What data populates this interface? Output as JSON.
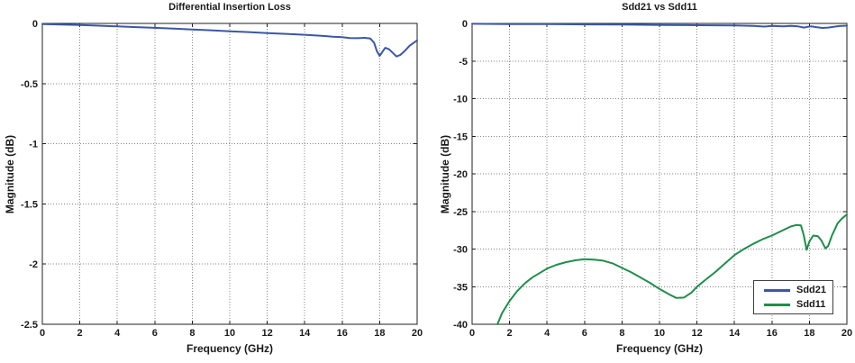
{
  "figure": {
    "background": "#ffffff",
    "axis_color": "#1f1f1f",
    "grid_color": "#858585",
    "text_color": "#1a1a1a",
    "line_blue": "#3a57a8",
    "line_green": "#1e8e4a"
  },
  "chart_data": [
    {
      "type": "line",
      "title": "Differential Insertion Loss",
      "xlabel": "Frequency (GHz)",
      "ylabel": "Magnitude (dB)",
      "xlim": [
        0,
        20
      ],
      "ylim": [
        -2.5,
        0
      ],
      "xticks": [
        0,
        2,
        4,
        6,
        8,
        10,
        12,
        14,
        16,
        18,
        20
      ],
      "yticks": [
        0,
        -0.5,
        -1,
        -1.5,
        -2,
        -2.5
      ],
      "grid": true,
      "legend": null,
      "series": [
        {
          "name": "Sdd21",
          "color": "#3a57a8",
          "x": [
            0,
            1,
            2,
            3,
            4,
            5,
            6,
            7,
            8,
            9,
            10,
            11,
            12,
            13,
            14,
            15,
            15.5,
            16,
            16.4,
            16.8,
            17.2,
            17.5,
            17.7,
            17.85,
            18.0,
            18.15,
            18.3,
            18.5,
            18.7,
            18.9,
            19.1,
            19.3,
            19.6,
            20
          ],
          "y": [
            -0.005,
            -0.009,
            -0.013,
            -0.019,
            -0.025,
            -0.031,
            -0.037,
            -0.043,
            -0.05,
            -0.057,
            -0.065,
            -0.072,
            -0.08,
            -0.087,
            -0.094,
            -0.104,
            -0.11,
            -0.114,
            -0.121,
            -0.123,
            -0.12,
            -0.125,
            -0.16,
            -0.23,
            -0.27,
            -0.235,
            -0.203,
            -0.215,
            -0.245,
            -0.275,
            -0.262,
            -0.235,
            -0.185,
            -0.141
          ]
        }
      ]
    },
    {
      "type": "line",
      "title": "Sdd21 vs Sdd11",
      "xlabel": "Frequency (GHz)",
      "ylabel": "Magnitude (dB)",
      "xlim": [
        0,
        20
      ],
      "ylim": [
        -40,
        0
      ],
      "xticks": [
        0,
        2,
        4,
        6,
        8,
        10,
        12,
        14,
        16,
        18,
        20
      ],
      "yticks": [
        0,
        -5,
        -10,
        -15,
        -20,
        -25,
        -30,
        -35,
        -40
      ],
      "grid": true,
      "legend": {
        "position": "bottom-right",
        "entries": [
          "Sdd21",
          "Sdd11"
        ]
      },
      "series": [
        {
          "name": "Sdd21",
          "color": "#3a57a8",
          "x": [
            0,
            2,
            4,
            6,
            8,
            10,
            12,
            14,
            15,
            15.6,
            16,
            16.6,
            17,
            17.4,
            17.7,
            17.9,
            18.1,
            18.4,
            18.7,
            19.0,
            19.3,
            19.6,
            20
          ],
          "y": [
            -0.05,
            -0.08,
            -0.1,
            -0.13,
            -0.16,
            -0.2,
            -0.24,
            -0.28,
            -0.33,
            -0.42,
            -0.33,
            -0.38,
            -0.33,
            -0.4,
            -0.55,
            -0.45,
            -0.4,
            -0.5,
            -0.6,
            -0.55,
            -0.45,
            -0.35,
            -0.3
          ]
        },
        {
          "name": "Sdd11",
          "color": "#1e8e4a",
          "x": [
            1.35,
            1.6,
            2,
            2.4,
            2.8,
            3.2,
            3.6,
            4,
            4.5,
            5,
            5.5,
            6,
            6.5,
            7,
            7.5,
            8,
            8.5,
            9,
            9.5,
            10,
            10.5,
            10.9,
            11.3,
            11.7,
            12,
            12.5,
            13,
            13.5,
            14,
            14.5,
            15,
            15.5,
            16,
            16.5,
            17,
            17.3,
            17.55,
            17.7,
            17.85,
            18.0,
            18.2,
            18.45,
            18.65,
            18.85,
            19.0,
            19.2,
            19.5,
            19.75,
            20
          ],
          "y": [
            -40,
            -38.5,
            -36.9,
            -35.6,
            -34.6,
            -33.8,
            -33.2,
            -32.6,
            -32.1,
            -31.75,
            -31.5,
            -31.35,
            -31.4,
            -31.55,
            -31.9,
            -32.5,
            -33.1,
            -33.8,
            -34.5,
            -35.3,
            -36.0,
            -36.5,
            -36.45,
            -35.8,
            -35.0,
            -34.0,
            -33.0,
            -31.9,
            -30.8,
            -30.0,
            -29.3,
            -28.7,
            -28.2,
            -27.6,
            -27.0,
            -26.8,
            -26.85,
            -28.2,
            -30.1,
            -29.0,
            -28.2,
            -28.3,
            -28.9,
            -29.9,
            -29.6,
            -28.2,
            -26.6,
            -25.9,
            -25.4
          ]
        }
      ]
    }
  ]
}
